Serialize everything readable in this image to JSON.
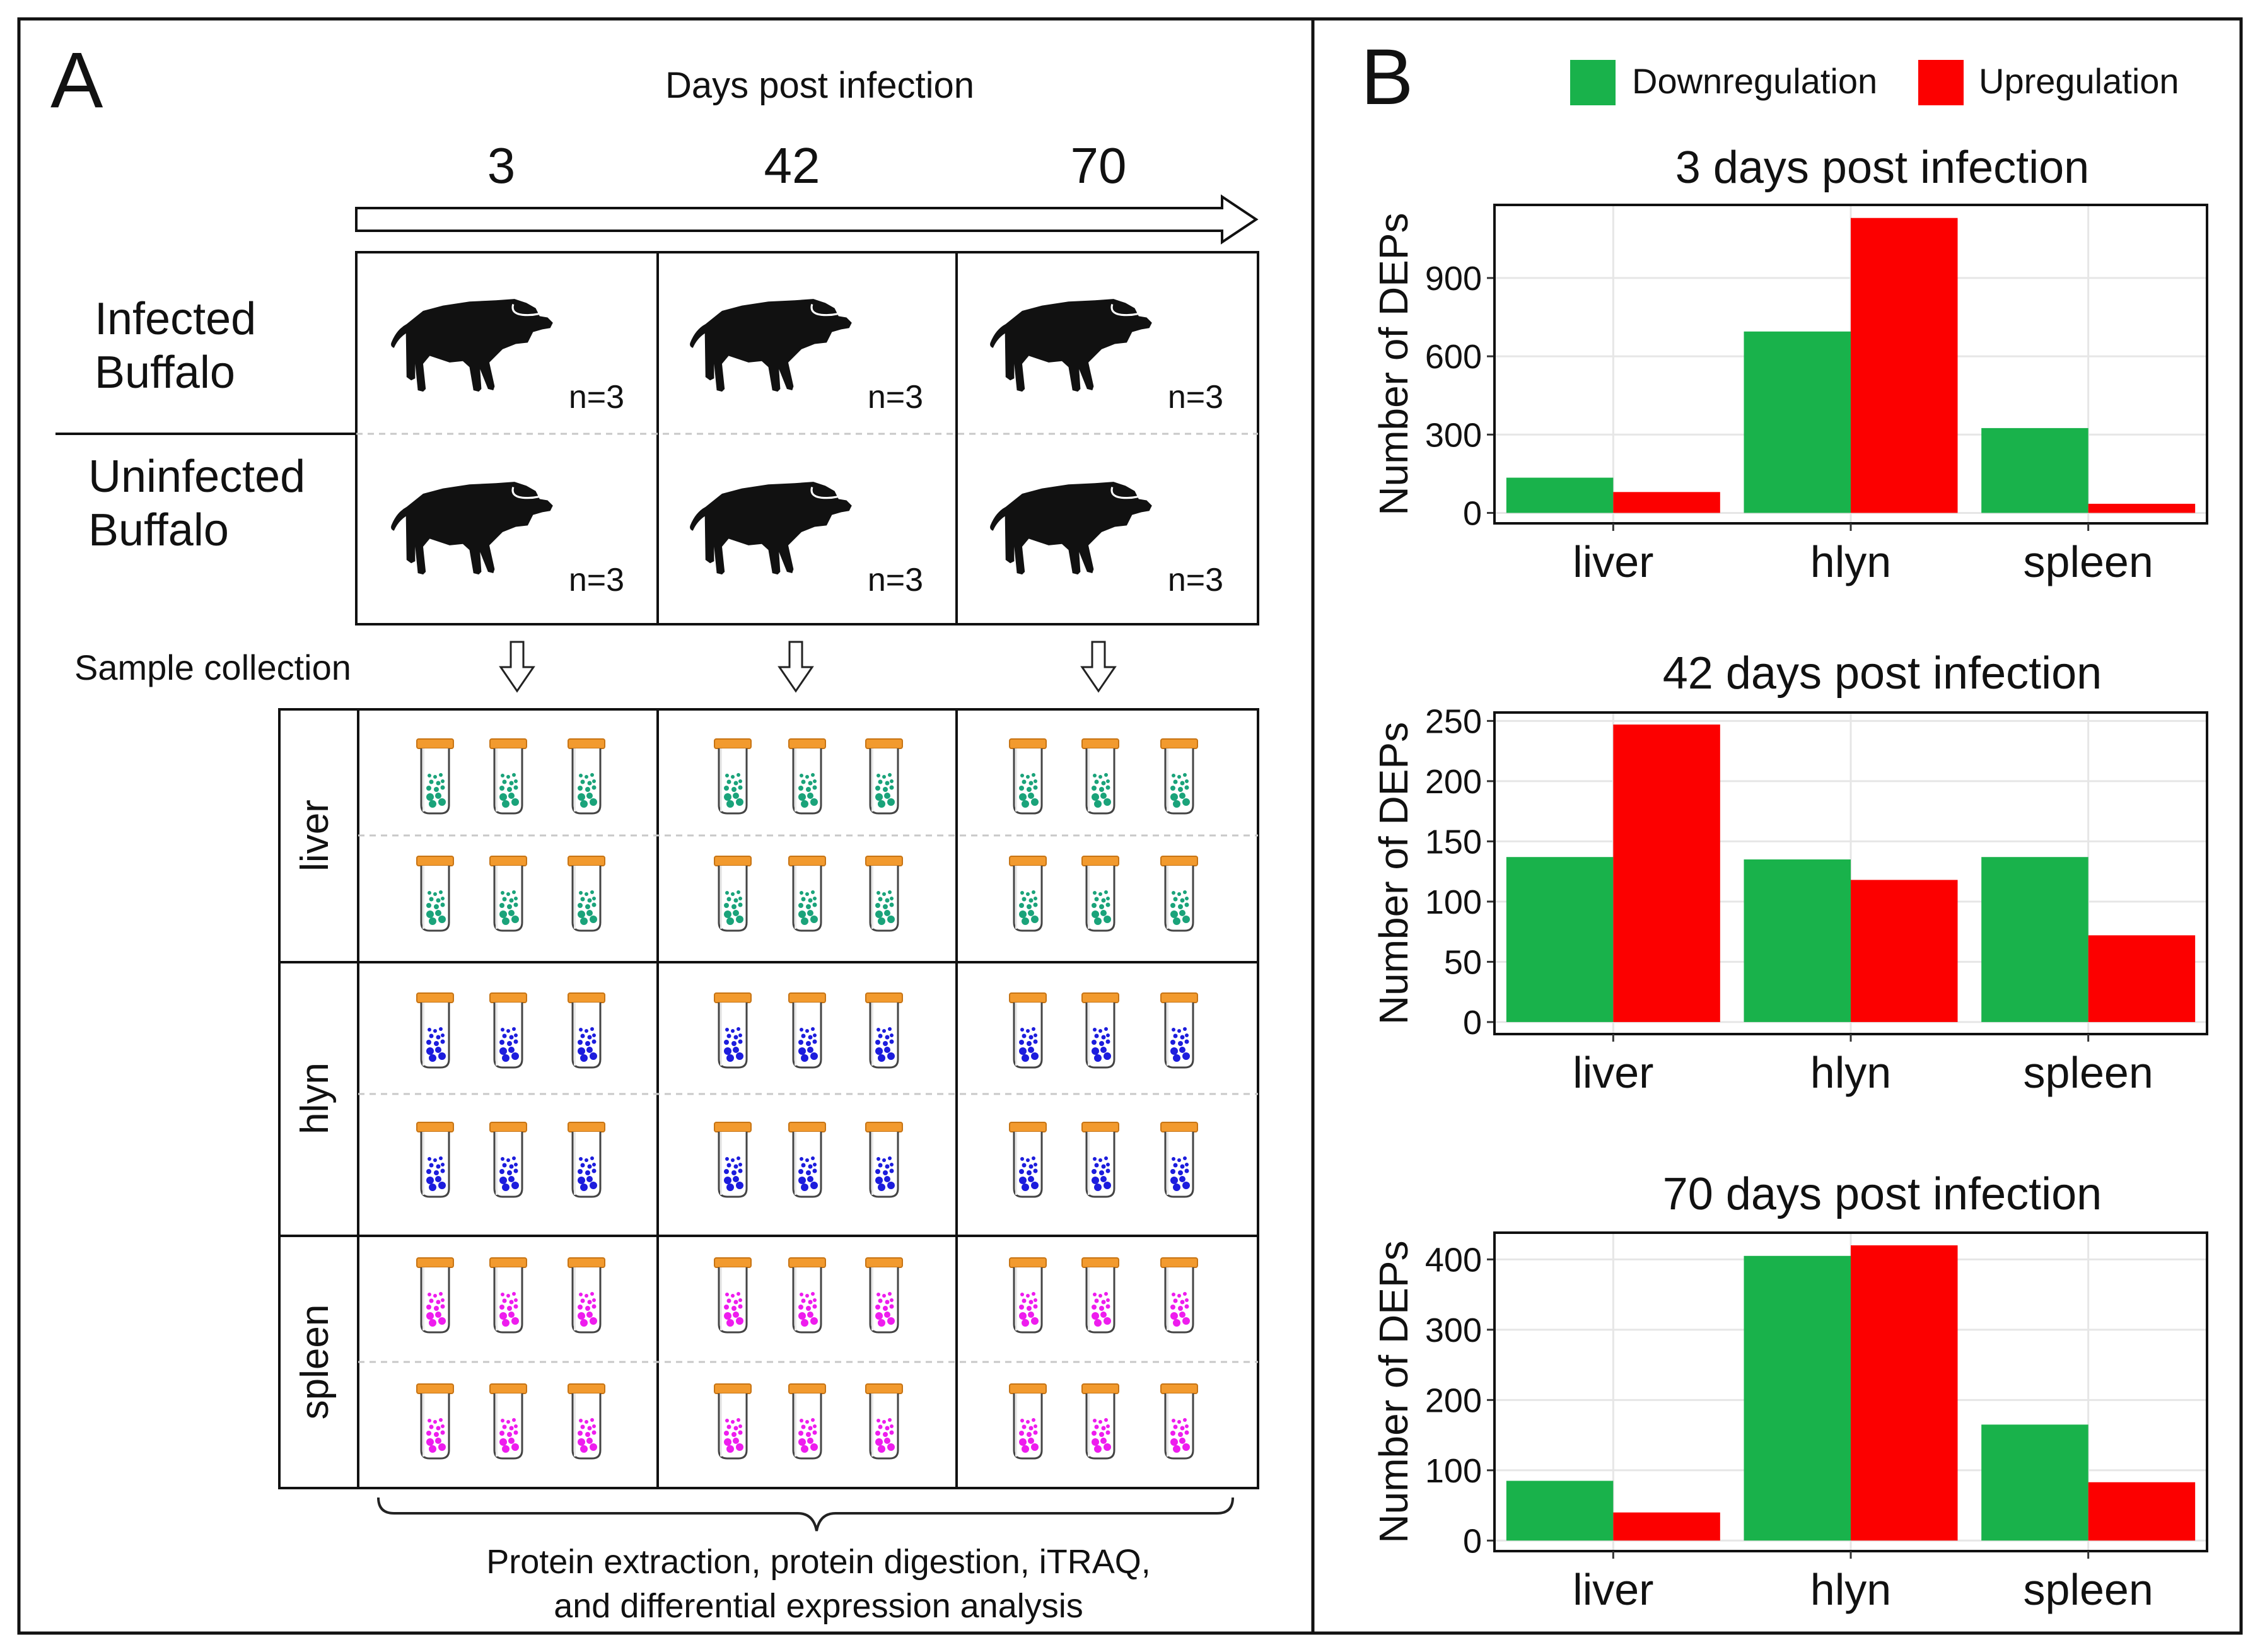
{
  "panel_a": {
    "letter": "A",
    "header": "Days post infection",
    "days": [
      "3",
      "42",
      "70"
    ],
    "groups": [
      {
        "line1": "Infected",
        "line2": "Buffalo"
      },
      {
        "line1": "Uninfected",
        "line2": "Buffalo"
      }
    ],
    "n_label": "n=3",
    "sample_label": "Sample collection",
    "tissues": [
      "liver",
      "hlyn",
      "spleen"
    ],
    "colors": {
      "liver": "#1aa37a",
      "hlyn": "#1c1cdd",
      "spleen": "#ee1cee",
      "cap": "#f29a2e",
      "buffalo": "#111111"
    },
    "bottom_line1": "Protein extraction, protein digestion, iTRAQ,",
    "bottom_line2": "and differential expression analysis",
    "icons": [
      "buffalo-icon",
      "arrow-down-icon",
      "sample-tube-icon",
      "curly-brace-icon"
    ]
  },
  "panel_b": {
    "letter": "B",
    "legend": [
      {
        "label": "Downregulation",
        "color": "#19b24b"
      },
      {
        "label": "Upregulation",
        "color": "#fc0000"
      }
    ]
  },
  "chart_data": [
    {
      "type": "bar",
      "title": "3 days post infection",
      "ylabel": "Number of DEPs",
      "xlabel": "",
      "categories": [
        "liver",
        "hlyn",
        "spleen"
      ],
      "series": [
        {
          "name": "Downregulation",
          "values": [
            135,
            695,
            325
          ]
        },
        {
          "name": "Upregulation",
          "values": [
            80,
            1130,
            35
          ]
        }
      ],
      "yticks": [
        0,
        300,
        600,
        900
      ],
      "ylim": [
        -40,
        1180
      ],
      "grid": true,
      "legend": "top-right"
    },
    {
      "type": "bar",
      "title": "42 days post infection",
      "ylabel": "Number of DEPs",
      "xlabel": "",
      "categories": [
        "liver",
        "hlyn",
        "spleen"
      ],
      "series": [
        {
          "name": "Downregulation",
          "values": [
            137,
            135,
            137
          ]
        },
        {
          "name": "Upregulation",
          "values": [
            247,
            118,
            72
          ]
        }
      ],
      "yticks": [
        0,
        50,
        100,
        150,
        200,
        250
      ],
      "ylim": [
        -10,
        257
      ],
      "grid": true,
      "legend": "top-right"
    },
    {
      "type": "bar",
      "title": "70 days post infection",
      "ylabel": "Number of DEPs",
      "xlabel": "",
      "categories": [
        "liver",
        "hlyn",
        "spleen"
      ],
      "series": [
        {
          "name": "Downregulation",
          "values": [
            85,
            405,
            165
          ]
        },
        {
          "name": "Upregulation",
          "values": [
            40,
            420,
            83
          ]
        }
      ],
      "yticks": [
        0,
        100,
        200,
        300,
        400
      ],
      "ylim": [
        -15,
        438
      ],
      "grid": true,
      "legend": "top-right"
    }
  ]
}
